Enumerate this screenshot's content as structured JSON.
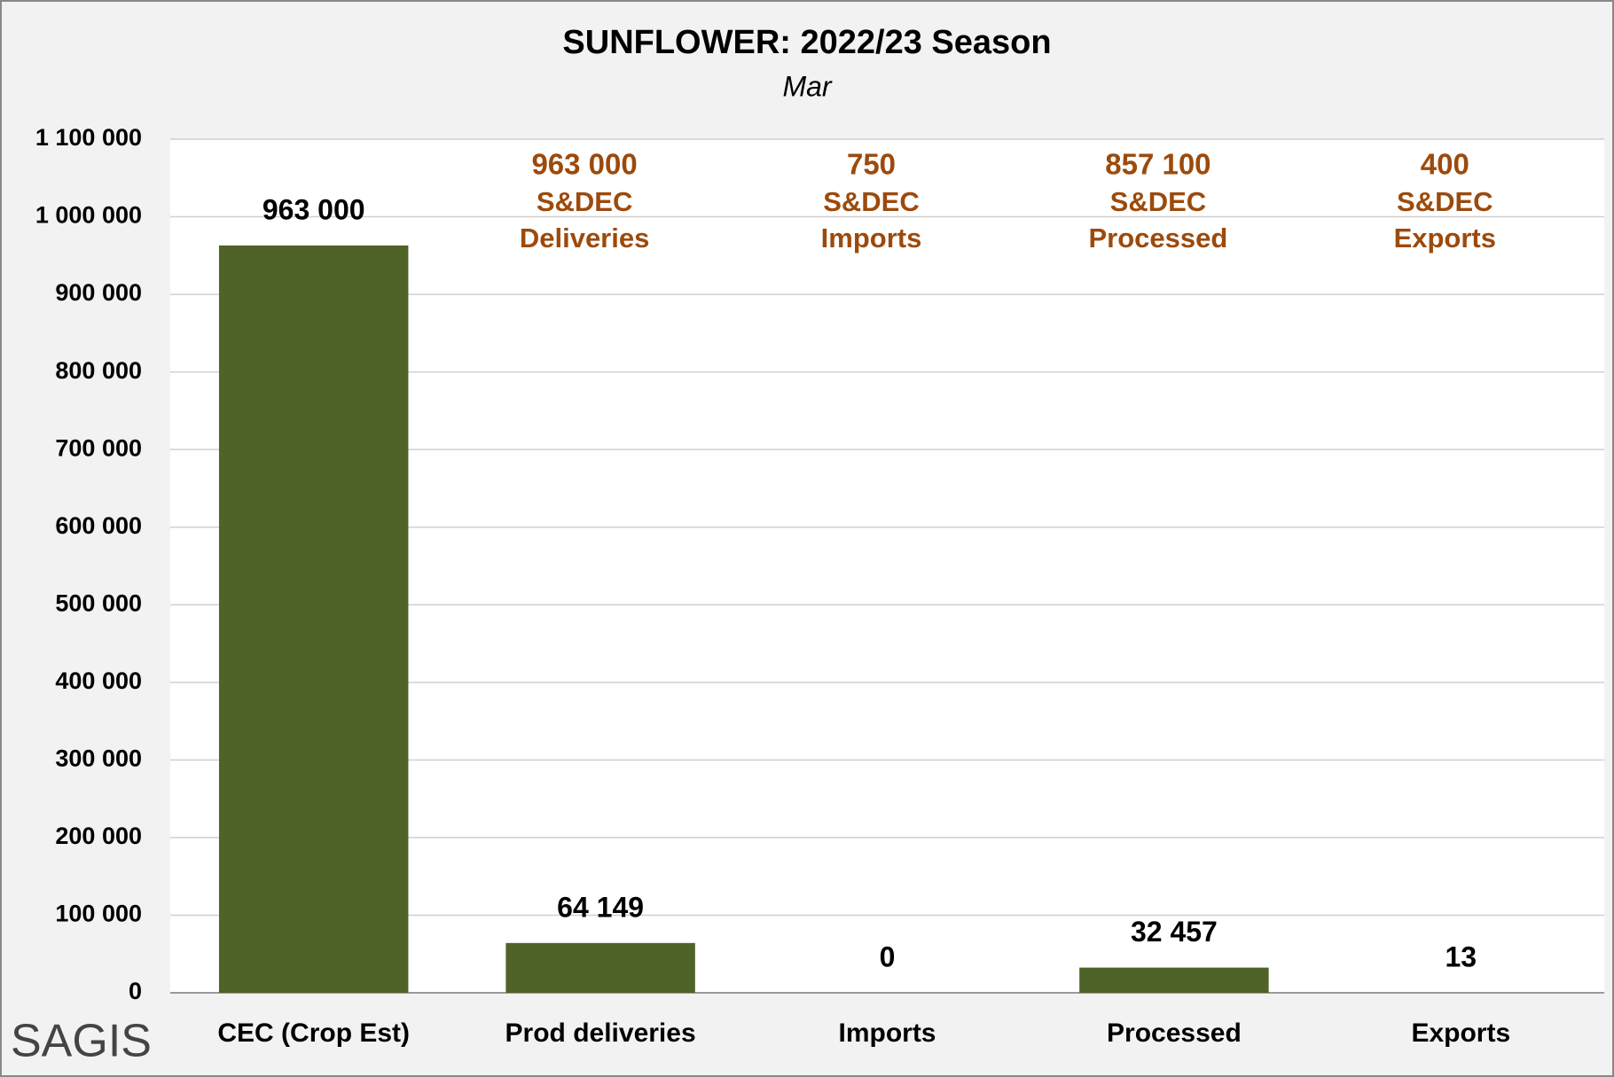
{
  "chart_data": {
    "type": "bar",
    "title": "SUNFLOWER: 2022/23 Season",
    "subtitle": "Mar",
    "categories": [
      "CEC (Crop Est)",
      "Prod deliveries",
      "Imports",
      "Processed",
      "Exports"
    ],
    "values": [
      963000,
      64149,
      0,
      32457,
      13
    ],
    "value_labels": [
      "963 000",
      "64 149",
      "0",
      "32 457",
      "13"
    ],
    "color": "#4f6228",
    "ylim": [
      0,
      1100000
    ],
    "yticks": [
      0,
      {
        "value": 100000,
        "label": "100 000"
      },
      {
        "value": 200000,
        "label": "200 000"
      },
      {
        "value": 300000,
        "label": "300 000"
      },
      {
        "value": 400000,
        "label": "400 000"
      },
      {
        "value": 500000,
        "label": "500 000"
      },
      {
        "value": 600000,
        "label": "600 000"
      },
      {
        "value": 700000,
        "label": "700 000"
      },
      {
        "value": 800000,
        "label": "800 000"
      },
      {
        "value": 900000,
        "label": "900 000"
      },
      {
        "value": 1000000,
        "label": "1 000 000"
      },
      {
        "value": 1100000,
        "label": "1 100 000"
      }
    ],
    "grid": true,
    "annotations": [
      {
        "label": "963 000",
        "lines": [
          "S&DEC",
          "Deliveries"
        ]
      },
      {
        "label": "750",
        "lines": [
          "S&DEC",
          "Imports"
        ]
      },
      {
        "label": "857 100",
        "lines": [
          "S&DEC",
          "Processed"
        ]
      },
      {
        "label": "400",
        "lines": [
          "S&DEC",
          "Exports"
        ]
      }
    ],
    "annotation_color": "#9c4a0c",
    "logo": "SAGIS"
  }
}
